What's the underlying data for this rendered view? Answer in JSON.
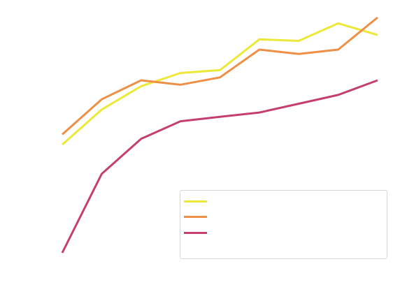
{
  "chart_data": {
    "type": "line",
    "title": "",
    "xlabel": "",
    "ylabel": "",
    "x": [
      1,
      2,
      3,
      4,
      5,
      6,
      7,
      8,
      9
    ],
    "xlim": [
      1,
      9
    ],
    "ylim": [
      0,
      100
    ],
    "grid": false,
    "legend": "bottom-right",
    "series": [
      {
        "color": "#ebe83a",
        "values": [
          61,
          73,
          81,
          85.5,
          86.5,
          97,
          96.5,
          102.5,
          98.5
        ]
      },
      {
        "color": "#ee8f45",
        "values": [
          64.5,
          76.5,
          83,
          81.5,
          84,
          93.5,
          92,
          93.5,
          104.5
        ]
      },
      {
        "color": "#c43f6f",
        "values": [
          24,
          51,
          63,
          69,
          70.5,
          72,
          75,
          78,
          83
        ]
      }
    ]
  }
}
